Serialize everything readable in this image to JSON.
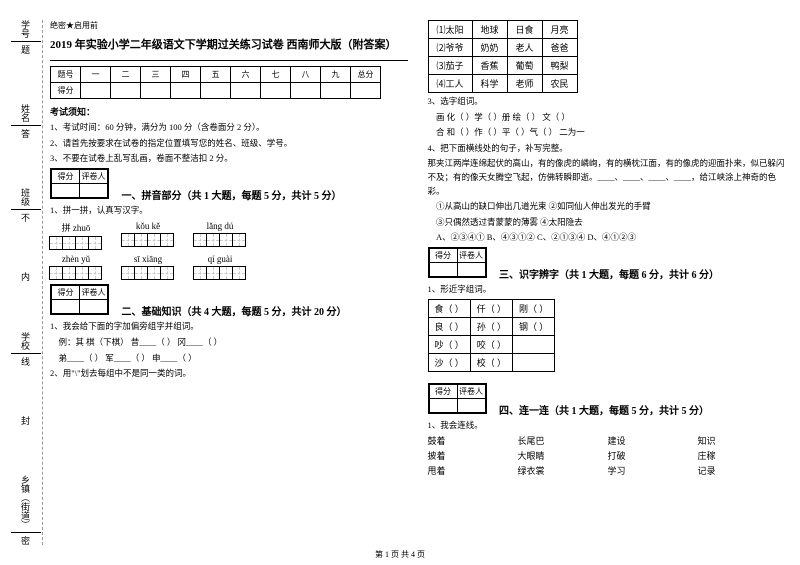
{
  "sidebar": {
    "items": [
      {
        "label": "学号",
        "cut": "题"
      },
      {
        "label": "姓名",
        "cut": "答"
      },
      {
        "label": "班级",
        "cut": "不"
      },
      {
        "label": "",
        "cut": "内"
      },
      {
        "label": "学校",
        "cut": "线"
      },
      {
        "label": "",
        "cut": "封"
      },
      {
        "label": "乡镇（街道）",
        "cut": "密"
      }
    ]
  },
  "header_small": "绝密★启用前",
  "title": "2019 年实验小学二年级语文下学期过关练习试卷 西南师大版（附答案）",
  "score_headers": [
    "题号",
    "一",
    "二",
    "三",
    "四",
    "五",
    "六",
    "七",
    "八",
    "九",
    "总分"
  ],
  "score_row": "得分",
  "notice_title": "考试须知：",
  "notices": [
    "1、考试时间：60 分钟，满分为 100 分（含卷面分 2 分）。",
    "2、请首先按要求在试卷的指定位置填写您的姓名、班级、学号。",
    "3、不要在试卷上乱写乱画，卷面不整洁扣 2 分。"
  ],
  "box_headers": [
    "得分",
    "评卷人"
  ],
  "sec1": {
    "title": "一、拼音部分（共 1 大题，每题 5 分，共计 5 分）",
    "q1": "1、拼一拼，认真写汉字。",
    "pinyin_row1": [
      "拼    zhuō",
      "kǒu   kě",
      "lǎng   dú"
    ],
    "pinyin_row2": [
      "zhèn   yǔ",
      "sī    xiāng",
      "qí   guài"
    ]
  },
  "sec2": {
    "title": "二、基础知识（共 4 大题，每题 5 分，共计 20 分）",
    "q1": "1、我会给下面的字加偏旁组字并组词。",
    "q1_ex": "例：其 棋（下棋）     昔____（       ）     冈____（       ）",
    "q1_line2": "     弟____（       ）     军____（       ）     申____（       ）",
    "q2": "2、用\"\\\"划去每组中不是同一类的词。"
  },
  "word_table": [
    [
      "⑴太阳",
      "地球",
      "日食",
      "月亮"
    ],
    [
      "⑵爷爷",
      "奶奶",
      "老人",
      "爸爸"
    ],
    [
      "⑶茄子",
      "香蕉",
      "葡萄",
      "鸭梨"
    ],
    [
      "⑷工人",
      "科学",
      "老师",
      "农民"
    ]
  ],
  "q3": {
    "title": "3、选字组词。",
    "line1": "画  化（       ）学（       ）册   绘（       ）   文（       ）",
    "line2": "合  和（       ）作（       ）平（       ）气（       ） 二为一"
  },
  "q4": {
    "title": "4、把下面横线处的句子，补写完整。",
    "body": "那夹江两岸连绵起伏的高山，有的像虎的嶙峋，有的横枕江面，有的像虎的迎面扑来，似已躲闪不及；有的像天女腾空飞起，仿佛转瞬即逝。____、____、____、____，给江峡涂上神奇的色彩。",
    "opts_line1": "①从高山的缺口伸出几道光束     ②如同仙人伸出发光的手臂",
    "opts_line2": "③只偶然透过青蒙蒙的薄雾       ④太阳隐去",
    "choices": "A、②③④①      B、④③①②      C、②①③④      D、④①②③"
  },
  "sec3": {
    "title": "三、识字辨字（共 1 大题，每题 6 分，共计 6 分）",
    "q1": "1、形近字组词。",
    "rows": [
      [
        "食（     ）",
        "仟（     ）",
        "刚（     ）"
      ],
      [
        "良（     ）",
        "孙（     ）",
        "钢（     ）"
      ],
      [
        "吵（     ）",
        "咬（     ）",
        ""
      ],
      [
        "沙（     ）",
        "校（     ）",
        ""
      ]
    ]
  },
  "sec4": {
    "title": "四、连一连（共 1 大题，每题 5 分，共计 5 分）",
    "q1": "1、我会连线。",
    "rows": [
      [
        "鼓着",
        "长尾巴",
        "建设",
        "知识"
      ],
      [
        "披着",
        "大眼睛",
        "打破",
        "庄稼"
      ],
      [
        "甩着",
        "绿衣裳",
        "学习",
        "记录"
      ]
    ]
  },
  "footer": "第 1 页 共 4 页"
}
